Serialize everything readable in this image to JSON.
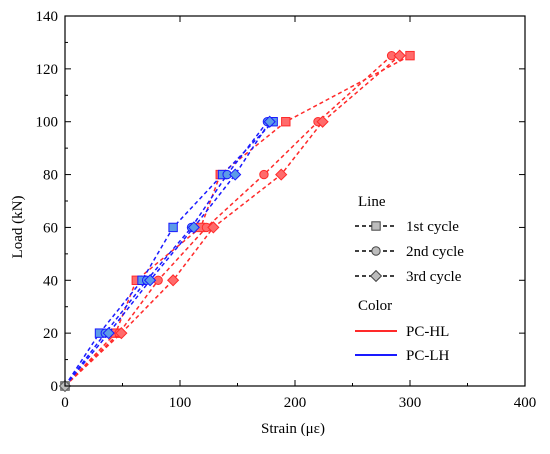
{
  "chart_data": {
    "type": "line",
    "xlabel": "Strain (με)",
    "ylabel": "Load (kN)",
    "xlim": [
      0,
      400
    ],
    "ylim": [
      0,
      140
    ],
    "xticks": [
      0,
      100,
      200,
      300,
      400
    ],
    "yticks": [
      0,
      20,
      40,
      60,
      80,
      100,
      120,
      140
    ],
    "grid": false,
    "legend": {
      "placement": "right",
      "line_title": "Line",
      "line_entries": [
        {
          "label": "1st cycle",
          "marker": "square"
        },
        {
          "label": "2nd cycle",
          "marker": "circle"
        },
        {
          "label": "3rd cycle",
          "marker": "diamond"
        }
      ],
      "color_title": "Color",
      "color_entries": [
        {
          "label": "PC-HL",
          "color": "#ff2a2a"
        },
        {
          "label": "PC-LH",
          "color": "#1a1aff"
        }
      ]
    },
    "series": [
      {
        "specimen": "PC-HL",
        "cycle": "1st cycle",
        "color": "#ff2a2a",
        "marker": "square",
        "x": [
          0,
          44,
          62,
          118,
          135,
          192,
          300
        ],
        "y": [
          0,
          20,
          40,
          60,
          80,
          100,
          125
        ]
      },
      {
        "specimen": "PC-HL",
        "cycle": "2nd cycle",
        "color": "#ff2a2a",
        "marker": "circle",
        "x": [
          0,
          47,
          81,
          123,
          173,
          220,
          284
        ],
        "y": [
          0,
          20,
          40,
          60,
          80,
          100,
          125
        ]
      },
      {
        "specimen": "PC-HL",
        "cycle": "3rd cycle",
        "color": "#ff2a2a",
        "marker": "diamond",
        "x": [
          0,
          49,
          94,
          129,
          188,
          224,
          291
        ],
        "y": [
          0,
          20,
          40,
          60,
          80,
          100,
          125
        ]
      },
      {
        "specimen": "PC-LH",
        "cycle": "1st cycle",
        "color": "#1a1aff",
        "marker": "square",
        "x": [
          0,
          30,
          67,
          94,
          137,
          181
        ],
        "y": [
          0,
          20,
          40,
          60,
          80,
          100
        ]
      },
      {
        "specimen": "PC-LH",
        "cycle": "2nd cycle",
        "color": "#1a1aff",
        "marker": "circle",
        "x": [
          0,
          35,
          71,
          110,
          141,
          176
        ],
        "y": [
          0,
          20,
          40,
          60,
          80,
          100
        ]
      },
      {
        "specimen": "PC-LH",
        "cycle": "3rd cycle",
        "color": "#1a1aff",
        "marker": "diamond",
        "x": [
          0,
          38,
          74,
          112,
          148,
          178
        ],
        "y": [
          0,
          20,
          40,
          60,
          80,
          100
        ]
      }
    ]
  }
}
